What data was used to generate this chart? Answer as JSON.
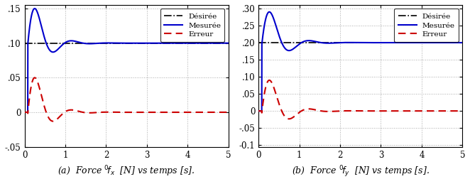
{
  "plot_a": {
    "desired": 0.1,
    "ylim": [
      -0.05,
      0.155
    ],
    "yticks": [
      -0.05,
      0.0,
      0.05,
      0.1,
      0.15
    ],
    "ytick_labels": [
      "-.05",
      "0",
      ".05",
      ".10",
      ".15"
    ],
    "xlim": [
      0,
      5
    ],
    "xticks": [
      0,
      1,
      2,
      3,
      4,
      5
    ],
    "xlabel": "(a)  Force ${}^{0}\\!f_x$  [N] vs temps [s].",
    "desired_value": 0.1,
    "peak": 0.15,
    "peak_t": 0.28,
    "dip": 0.087,
    "dip_t": 0.72,
    "decay": 3.0,
    "omega": 7.0,
    "t_contact": 0.08,
    "rise_rate": 40.0
  },
  "plot_b": {
    "desired": 0.2,
    "ylim": [
      -0.105,
      0.31
    ],
    "yticks": [
      -0.1,
      -0.05,
      0.0,
      0.05,
      0.1,
      0.15,
      0.2,
      0.25,
      0.3
    ],
    "ytick_labels": [
      "-0.1",
      "-.05",
      "0",
      ".05",
      ".10",
      ".15",
      ".20",
      ".25",
      ".30"
    ],
    "xlim": [
      0,
      5
    ],
    "xticks": [
      0,
      1,
      2,
      3,
      4,
      5
    ],
    "xlabel": "(b)  Force ${}^{0}\\!f_y$  [N] vs temps [s].",
    "desired_value": 0.2,
    "peak": 0.29,
    "peak_t": 0.32,
    "dip": 0.183,
    "dip_t": 0.75,
    "decay": 2.8,
    "omega": 6.5,
    "t_contact": 0.08,
    "rise_rate": 40.0
  },
  "colors": {
    "measured": "#0000CC",
    "desired": "#000000",
    "error": "#CC0000"
  },
  "legend_labels": [
    "Mesurée",
    "Désirée",
    "Erreur"
  ],
  "figsize": [
    6.62,
    2.59
  ],
  "dpi": 100
}
